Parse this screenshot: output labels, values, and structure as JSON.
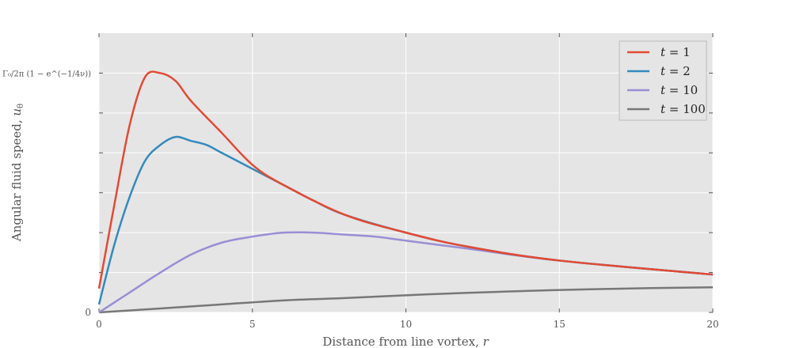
{
  "chart_data": {
    "type": "line",
    "title": "",
    "xlabel": "Distance from line vortex, r",
    "ylabel": "Angular fluid speed, u_θ",
    "xlabel_parts": {
      "text": "Distance from line vortex, ",
      "var": "r"
    },
    "ylabel_parts": {
      "text": "Angular fluid speed, ",
      "var": "u",
      "sub": "θ"
    },
    "xlim": [
      0,
      20
    ],
    "ylim": [
      0,
      0.7
    ],
    "xticks": [
      0,
      5,
      10,
      15,
      20
    ],
    "xtick_labels": [
      "0",
      "5",
      "10",
      "15",
      "20"
    ],
    "yticks": [
      0,
      0.1,
      0.2,
      0.3,
      0.4,
      0.5,
      0.6
    ],
    "ytick_labels": [
      "0",
      "",
      "",
      "",
      "",
      "",
      "Γ₀/2π (1 − e^(−1/4ν))"
    ],
    "grid": true,
    "legend_position": "top-right",
    "background": "#e5e5e5",
    "series": [
      {
        "name": "t = 1",
        "var": "t",
        "rest": " = 1",
        "color": "#e24a33",
        "x": [
          0,
          0.5,
          1,
          1.5,
          2,
          2.5,
          3,
          4,
          5,
          6,
          8,
          10,
          12,
          15,
          20
        ],
        "y": [
          0.06,
          0.27,
          0.47,
          0.59,
          0.6,
          0.58,
          0.53,
          0.45,
          0.37,
          0.32,
          0.245,
          0.2,
          0.165,
          0.13,
          0.095
        ]
      },
      {
        "name": "t = 2",
        "var": "t",
        "rest": " = 2",
        "color": "#348abd",
        "x": [
          0,
          0.5,
          1,
          1.5,
          2,
          2.5,
          3,
          3.5,
          4,
          5,
          6,
          7,
          8,
          10,
          12,
          15,
          20
        ],
        "y": [
          0.02,
          0.17,
          0.29,
          0.38,
          0.42,
          0.44,
          0.43,
          0.42,
          0.4,
          0.36,
          0.32,
          0.28,
          0.245,
          0.2,
          0.165,
          0.13,
          0.095
        ]
      },
      {
        "name": "t = 10",
        "var": "t",
        "rest": " = 10",
        "color": "#988ed5",
        "x": [
          0,
          1,
          2,
          3,
          4,
          5,
          6,
          7,
          8,
          9,
          10,
          12,
          15,
          20
        ],
        "y": [
          0.0,
          0.05,
          0.1,
          0.145,
          0.175,
          0.19,
          0.2,
          0.2,
          0.195,
          0.19,
          0.18,
          0.16,
          0.13,
          0.095
        ]
      },
      {
        "name": "t = 100",
        "var": "t",
        "rest": " = 100",
        "color": "#777777",
        "x": [
          0,
          2,
          4,
          6,
          8,
          10,
          12,
          14,
          16,
          18,
          20
        ],
        "y": [
          0.0,
          0.01,
          0.02,
          0.03,
          0.036,
          0.043,
          0.049,
          0.054,
          0.058,
          0.061,
          0.063
        ]
      }
    ]
  }
}
